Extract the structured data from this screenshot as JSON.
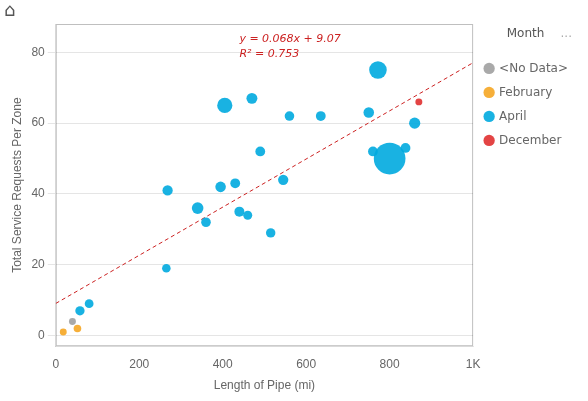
{
  "chart_data": {
    "type": "bubble",
    "title": "",
    "xlabel": "Length of Pipe (mi)",
    "ylabel": "Total Service Requests Per Zone",
    "xlim": [
      0,
      1000
    ],
    "ylim": [
      -3,
      88
    ],
    "xticks": [
      0,
      200,
      400,
      600,
      800,
      {
        "value": 1000,
        "label": "1K"
      }
    ],
    "yticks": [
      0,
      20,
      40,
      60,
      80
    ],
    "grid": "y",
    "legend": "right",
    "legend_title": "Month",
    "legend_note": "...",
    "icon": "⌂",
    "annotations": [
      "y = 0.068x + 9.07",
      "R² = 0.753"
    ],
    "trendline": {
      "x": [
        0,
        1000
      ],
      "y": [
        9.07,
        77.07
      ],
      "color": "#cc2222",
      "line_style": "dashed"
    },
    "series": [
      {
        "name": "<No Data>",
        "color": "#a0a0a0",
        "x": [
          40
        ],
        "y": [
          4
        ],
        "sizes": [
          25
        ]
      },
      {
        "name": "February",
        "color": "#f5a623",
        "x": [
          18,
          52
        ],
        "y": [
          1,
          2
        ],
        "sizes": [
          25,
          30
        ]
      },
      {
        "name": "April",
        "color": "#00aadf",
        "x": [
          58,
          80,
          265,
          268,
          340,
          360,
          395,
          405,
          430,
          440,
          460,
          470,
          490,
          515,
          545,
          560,
          635,
          750,
          760,
          772,
          800,
          838,
          860
        ],
        "y": [
          7,
          9,
          19,
          41,
          36,
          32,
          42,
          65,
          43,
          35,
          34,
          67,
          52,
          29,
          44,
          62,
          62,
          63,
          52,
          75,
          50,
          53,
          60
        ],
        "sizes": [
          45,
          40,
          38,
          55,
          70,
          48,
          58,
          120,
          50,
          52,
          42,
          62,
          50,
          46,
          55,
          48,
          50,
          58,
          50,
          160,
          520,
          50,
          65
        ]
      },
      {
        "name": "December",
        "color": "#e03030",
        "x": [
          870
        ],
        "y": [
          66
        ],
        "sizes": [
          25
        ]
      }
    ]
  }
}
